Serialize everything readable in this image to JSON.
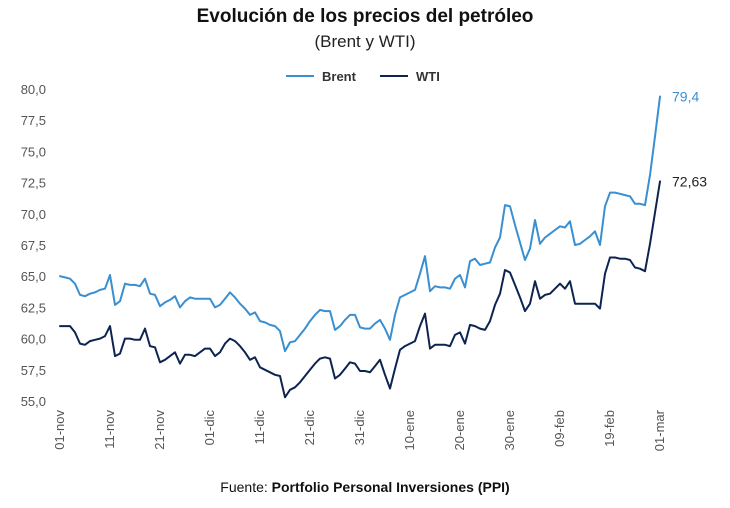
{
  "chart_data": {
    "type": "line",
    "title": "Evolución de los precios del petróleo",
    "subtitle": "(Brent y WTI)",
    "ylim": [
      55.0,
      80.0
    ],
    "yticks": [
      "80,0",
      "77,5",
      "75,0",
      "72,5",
      "70,0",
      "67,5",
      "65,0",
      "62,5",
      "60,0",
      "57,5",
      "55,0"
    ],
    "xticks": [
      "01-nov",
      "11-nov",
      "21-nov",
      "01-dic",
      "11-dic",
      "21-dic",
      "31-dic",
      "10-ene",
      "20-ene",
      "30-ene",
      "09-feb",
      "19-feb",
      "01-mar"
    ],
    "x_range_days": [
      0,
      120
    ],
    "legend_position": "top-center",
    "series": [
      {
        "name": "Brent",
        "color": "#3a8fd0",
        "end_label": "79,4",
        "x": [
          0,
          1,
          2,
          3,
          4,
          5,
          6,
          7,
          8,
          9,
          10,
          11,
          12,
          13,
          14,
          15,
          16,
          17,
          18,
          19,
          20,
          21,
          22,
          23,
          24,
          25,
          26,
          27,
          28,
          29,
          30,
          31,
          32,
          33,
          34,
          35,
          36,
          37,
          38,
          39,
          40,
          41,
          42,
          43,
          44,
          45,
          46,
          47,
          48,
          49,
          50,
          51,
          52,
          53,
          54,
          55,
          56,
          57,
          58,
          59,
          60,
          61,
          62,
          63,
          64,
          65,
          66,
          67,
          68,
          69,
          70,
          71,
          72,
          73,
          74,
          75,
          76,
          77,
          78,
          79,
          80,
          81,
          82,
          83,
          84,
          85,
          86,
          87,
          88,
          89,
          90,
          91,
          92,
          93,
          94,
          95,
          96,
          97,
          98,
          99,
          100,
          101,
          102,
          103,
          104,
          105,
          106,
          107,
          108,
          109,
          110,
          111,
          112,
          113,
          114,
          115,
          116,
          117,
          118,
          119,
          120
        ],
        "values": [
          65.0,
          64.9,
          64.8,
          64.4,
          63.5,
          63.4,
          63.6,
          63.7,
          63.9,
          64.0,
          65.1,
          62.7,
          63.0,
          64.4,
          64.3,
          64.3,
          64.2,
          64.8,
          63.6,
          63.5,
          62.6,
          62.9,
          63.1,
          63.4,
          62.5,
          63.0,
          63.3,
          63.2,
          63.2,
          63.2,
          63.2,
          62.5,
          62.7,
          63.2,
          63.7,
          63.3,
          62.8,
          62.4,
          61.9,
          62.1,
          61.4,
          61.3,
          61.1,
          61.0,
          60.6,
          59.0,
          59.7,
          59.8,
          60.3,
          60.8,
          61.4,
          61.9,
          62.3,
          62.2,
          62.2,
          60.7,
          61.0,
          61.5,
          61.9,
          61.9,
          60.9,
          60.8,
          60.8,
          61.2,
          61.5,
          60.8,
          59.9,
          61.9,
          63.3,
          63.5,
          63.7,
          63.9,
          65.2,
          66.6,
          63.8,
          64.2,
          64.1,
          64.1,
          64.0,
          64.8,
          65.1,
          64.1,
          66.2,
          66.4,
          65.9,
          66.0,
          66.1,
          67.3,
          68.1,
          70.7,
          70.6,
          69.1,
          67.7,
          66.3,
          67.2,
          69.5,
          67.6,
          68.1,
          68.4,
          68.7,
          69.0,
          68.9,
          69.4,
          67.5,
          67.6,
          67.9,
          68.2,
          68.6,
          67.5,
          70.6,
          71.7,
          71.7,
          71.6,
          71.5,
          71.4,
          70.8,
          70.8,
          70.7,
          73.1,
          76.2,
          79.4
        ]
      },
      {
        "name": "WTI",
        "color": "#0d2451",
        "end_label": "72,63",
        "x": [
          0,
          1,
          2,
          3,
          4,
          5,
          6,
          7,
          8,
          9,
          10,
          11,
          12,
          13,
          14,
          15,
          16,
          17,
          18,
          19,
          20,
          21,
          22,
          23,
          24,
          25,
          26,
          27,
          28,
          29,
          30,
          31,
          32,
          33,
          34,
          35,
          36,
          37,
          38,
          39,
          40,
          41,
          42,
          43,
          44,
          45,
          46,
          47,
          48,
          49,
          50,
          51,
          52,
          53,
          54,
          55,
          56,
          57,
          58,
          59,
          60,
          61,
          62,
          63,
          64,
          65,
          66,
          67,
          68,
          69,
          70,
          71,
          72,
          73,
          74,
          75,
          76,
          77,
          78,
          79,
          80,
          81,
          82,
          83,
          84,
          85,
          86,
          87,
          88,
          89,
          90,
          91,
          92,
          93,
          94,
          95,
          96,
          97,
          98,
          99,
          100,
          101,
          102,
          103,
          104,
          105,
          106,
          107,
          108,
          109,
          110,
          111,
          112,
          113,
          114,
          115,
          116,
          117,
          118,
          119,
          120
        ],
        "values": [
          61.0,
          61.0,
          61.0,
          60.5,
          59.6,
          59.5,
          59.8,
          59.9,
          60.0,
          60.2,
          61.0,
          58.6,
          58.8,
          60.0,
          60.0,
          59.9,
          59.9,
          60.8,
          59.4,
          59.3,
          58.1,
          58.3,
          58.6,
          58.9,
          58.0,
          58.7,
          58.7,
          58.6,
          58.9,
          59.2,
          59.2,
          58.6,
          58.9,
          59.6,
          60.0,
          59.8,
          59.4,
          58.9,
          58.3,
          58.5,
          57.7,
          57.5,
          57.3,
          57.1,
          57.0,
          55.3,
          55.9,
          56.1,
          56.5,
          57.0,
          57.5,
          58.0,
          58.4,
          58.5,
          58.4,
          56.8,
          57.1,
          57.6,
          58.1,
          58.0,
          57.4,
          57.4,
          57.3,
          57.8,
          58.3,
          57.1,
          56.0,
          57.6,
          59.1,
          59.4,
          59.6,
          59.8,
          61.0,
          62.0,
          59.2,
          59.5,
          59.5,
          59.5,
          59.4,
          60.3,
          60.5,
          59.6,
          61.1,
          61.0,
          60.8,
          60.7,
          61.4,
          62.7,
          63.6,
          65.5,
          65.3,
          64.3,
          63.3,
          62.2,
          62.8,
          64.6,
          63.2,
          63.5,
          63.6,
          64.0,
          64.4,
          64.0,
          64.6,
          62.8,
          62.8,
          62.8,
          62.8,
          62.8,
          62.4,
          65.2,
          66.5,
          66.5,
          66.4,
          66.4,
          66.3,
          65.7,
          65.6,
          65.4,
          67.6,
          70.1,
          72.6
        ]
      }
    ]
  },
  "source": {
    "prefix": "Fuente: ",
    "name": "Portfolio Personal Inversiones (PPI)"
  }
}
